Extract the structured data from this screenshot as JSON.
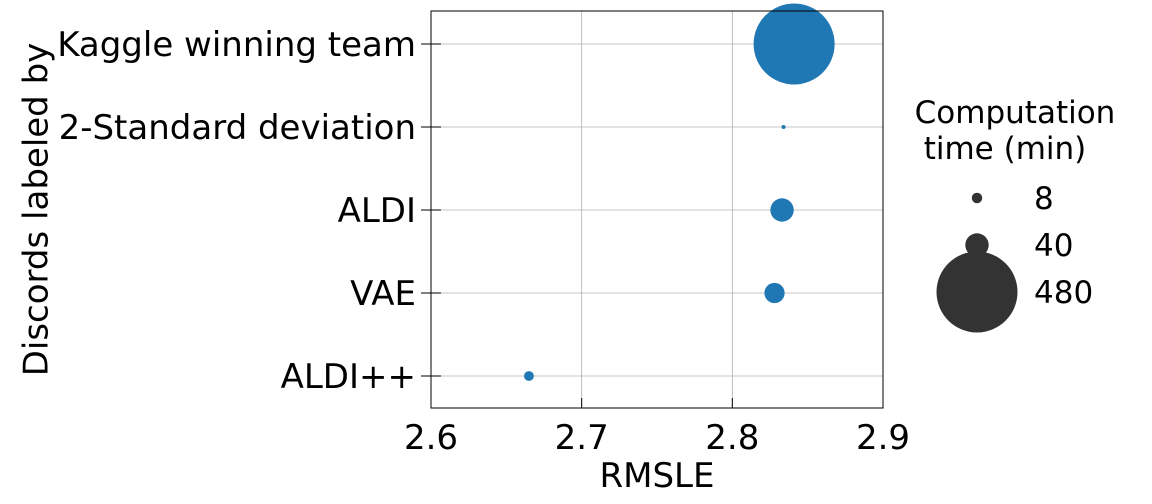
{
  "chart_data": {
    "type": "scatter",
    "xlabel": "RMSLE",
    "ylabel": "Discords labeled by",
    "xlim": [
      2.6,
      2.9
    ],
    "xticks": [
      "2.6",
      "2.7",
      "2.8",
      "2.9"
    ],
    "categories": [
      "Kaggle winning team",
      "2-Standard deviation",
      "ALDI",
      "VAE",
      "ALDI++"
    ],
    "points": [
      {
        "category": "Kaggle winning team",
        "x": 2.841,
        "time_min": 480
      },
      {
        "category": "2-Standard deviation",
        "x": 2.834,
        "time_min": 1
      },
      {
        "category": "ALDI",
        "x": 2.833,
        "time_min": 40
      },
      {
        "category": "VAE",
        "x": 2.828,
        "time_min": 30
      },
      {
        "category": "ALDI++",
        "x": 2.665,
        "time_min": 7
      }
    ],
    "grid": true,
    "marker_color": "#1f77b4",
    "legend": {
      "title_lines": [
        "Computation",
        "time (min)"
      ],
      "placement": "right",
      "color": "#333333",
      "entries": [
        {
          "label": "8",
          "time_min": 8
        },
        {
          "label": "40",
          "time_min": 40
        },
        {
          "label": "480",
          "time_min": 480
        }
      ]
    }
  }
}
